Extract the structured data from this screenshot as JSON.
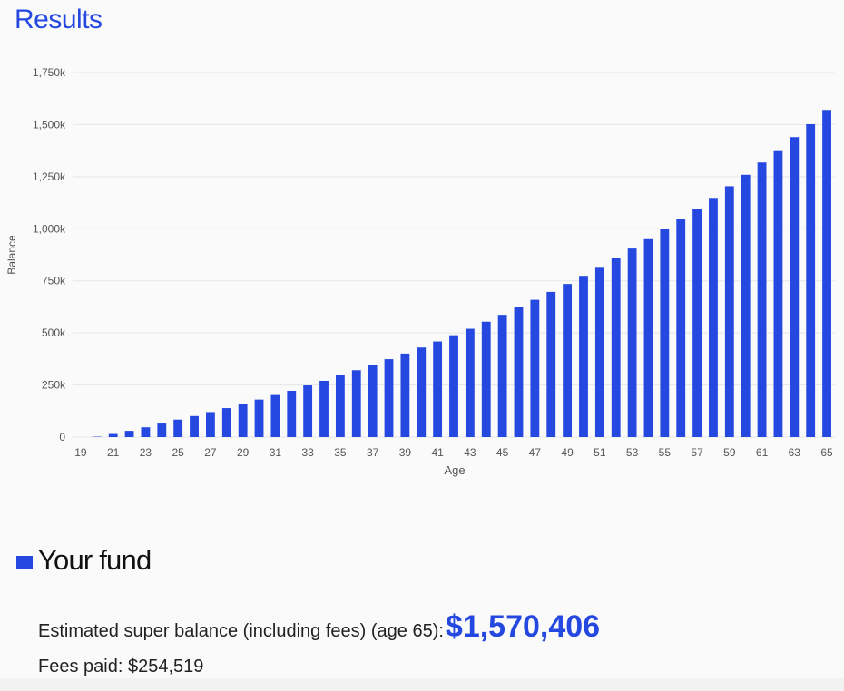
{
  "header": {
    "title": "Results"
  },
  "colors": {
    "accent": "#2548e0",
    "grid": "#e6e6e6",
    "tick_text": "#555555"
  },
  "chart_data": {
    "type": "bar",
    "xlabel": "Age",
    "ylabel": "Balance",
    "ylim": [
      0,
      1750000
    ],
    "grid": true,
    "y_ticks": [
      0,
      250000,
      500000,
      750000,
      1000000,
      1250000,
      1500000,
      1750000
    ],
    "y_tick_labels": [
      "0",
      "250k",
      "500k",
      "750k",
      "1,000k",
      "1,250k",
      "1,500k",
      "1,750k"
    ],
    "x_tick_labels": [
      "19",
      "21",
      "23",
      "25",
      "27",
      "29",
      "31",
      "33",
      "35",
      "37",
      "39",
      "41",
      "43",
      "45",
      "47",
      "49",
      "51",
      "53",
      "55",
      "57",
      "59",
      "61",
      "63",
      "65"
    ],
    "categories": [
      19,
      20,
      21,
      22,
      23,
      24,
      25,
      26,
      27,
      28,
      29,
      30,
      31,
      32,
      33,
      34,
      35,
      36,
      37,
      38,
      39,
      40,
      41,
      42,
      43,
      44,
      45,
      46,
      47,
      48,
      49,
      50,
      51,
      52,
      53,
      54,
      55,
      56,
      57,
      58,
      59,
      60,
      61,
      62,
      63,
      64,
      65
    ],
    "series": [
      {
        "name": "Your fund",
        "values": [
          0,
          2000,
          15000,
          30000,
          47000,
          65000,
          84000,
          101000,
          120000,
          139000,
          158000,
          180000,
          202000,
          222000,
          248000,
          270000,
          296000,
          321000,
          348000,
          374000,
          401000,
          430000,
          459000,
          489000,
          520000,
          554000,
          587000,
          623000,
          659000,
          697000,
          735000,
          774000,
          817000,
          860000,
          905000,
          950000,
          997000,
          1046000,
          1096000,
          1148000,
          1204000,
          1259000,
          1318000,
          1377000,
          1440000,
          1502000,
          1570406
        ]
      }
    ]
  },
  "legend": {
    "label": "Your fund"
  },
  "summary": {
    "estimate_label": "Estimated super balance (including fees) (age 65):",
    "estimate_value": "$1,570,406",
    "fees_text": "Fees paid: $254,519"
  }
}
